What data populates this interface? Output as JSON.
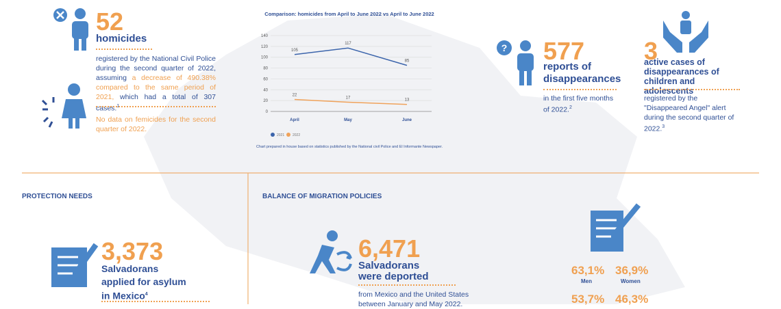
{
  "homicides": {
    "number": "52",
    "label": "homicides",
    "text_before": "registered by the National Civil Police during the second quarter of 2022, assuming ",
    "text_highlight": "a decrease of 490.38% compared to the same period of 2021,",
    "text_after": " which had a total of 307 cases.",
    "note": "1",
    "femicides": "No data on femicides for the second quarter of 2022."
  },
  "chart_data": {
    "type": "line",
    "title": "Comparison: homicides from April to June 2022 vs April to June 2022",
    "categories": [
      "April",
      "May",
      "June"
    ],
    "series": [
      {
        "name": "2021",
        "color": "#3b64ab",
        "values": [
          105,
          117,
          85
        ]
      },
      {
        "name": "2022",
        "color": "#f0a25a",
        "values": [
          22,
          17,
          13
        ]
      }
    ],
    "ylim": [
      0,
      140
    ],
    "yticks": [
      0,
      20,
      40,
      60,
      80,
      100,
      120,
      140
    ],
    "grid": true,
    "source": "Chart prepared in house based on statistics published by the National civil Police and El Informante Newspaper."
  },
  "disappearances": {
    "number": "577",
    "label_1": "reports of",
    "label_2": "disappearances",
    "text": "in the first five months of 2022.",
    "note": "2"
  },
  "children": {
    "number": "3",
    "label": "active cases of disappearances of children and adolescents",
    "text": "registered by the \"Disappeared Angel\" alert during the second quarter of 2022.",
    "note": "3"
  },
  "protection": {
    "heading": "PROTECTION NEEDS",
    "number": "3,373",
    "line_1": "Salvadorans",
    "line_2": "applied for asylum",
    "line_3": "in Mexico",
    "note": "4"
  },
  "migration": {
    "heading": "BALANCE OF MIGRATION POLICIES",
    "number": "6,471",
    "line_1": "Salvadorans",
    "line_2": "were deported",
    "text": "from Mexico and the United States between January and May 2022.",
    "men_pct_1": "63,1%",
    "men_label": "Men",
    "women_pct_1": "36,9%",
    "women_label": "Women",
    "men_pct_2": "53,7%",
    "women_pct_2": "46,3%"
  }
}
